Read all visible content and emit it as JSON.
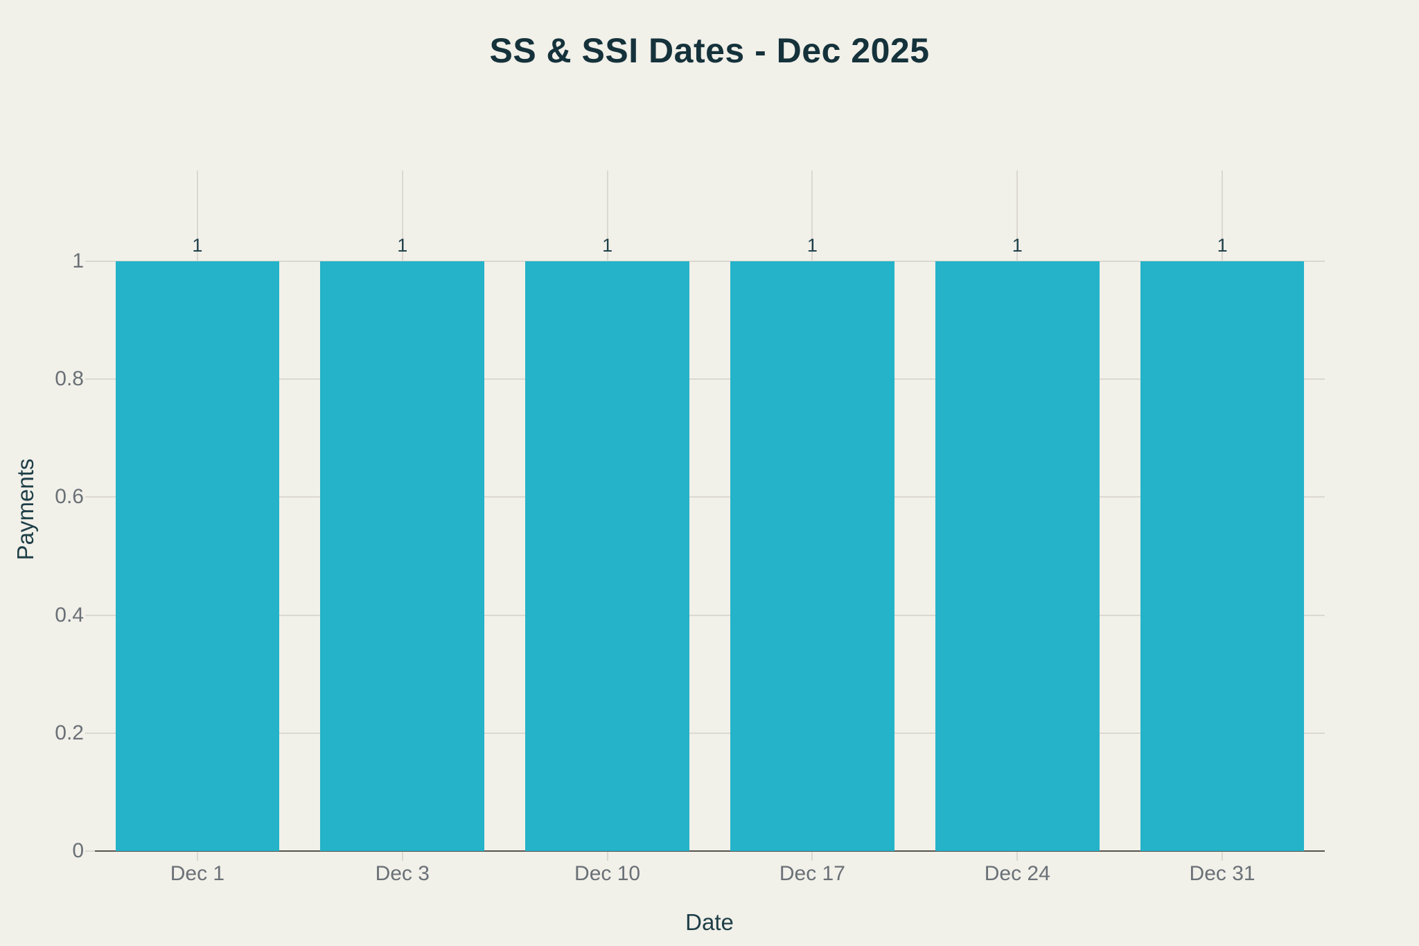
{
  "title": "SS & SSI Dates - Dec 2025",
  "chart_data": {
    "type": "bar",
    "title": "SS & SSI Dates - Dec 2025",
    "xlabel": "Date",
    "ylabel": "Payments",
    "categories": [
      "Dec 1",
      "Dec 3",
      "Dec 10",
      "Dec 17",
      "Dec 24",
      "Dec 31"
    ],
    "values": [
      1,
      1,
      1,
      1,
      1,
      1
    ],
    "bar_value_labels": [
      "1",
      "1",
      "1",
      "1",
      "1",
      "1"
    ],
    "yticks": [
      0,
      0.2,
      0.4,
      0.6,
      0.8,
      1
    ],
    "ytick_labels": [
      "0",
      "0.2",
      "0.4",
      "0.6",
      "0.8",
      "1"
    ],
    "ylim": [
      0,
      1.154
    ],
    "grid": true,
    "legend": "none",
    "bar_gap_fraction": 0.2,
    "colors": {
      "background": "#f1f0e9",
      "bar": "#24b3c9",
      "title": "#15323b",
      "axis_title": "#1e3e47",
      "tick_label": "#6a7076",
      "gridline": "#dbd8d0",
      "axis_line": "#56524c",
      "bar_value_label": "#1f4049"
    }
  }
}
